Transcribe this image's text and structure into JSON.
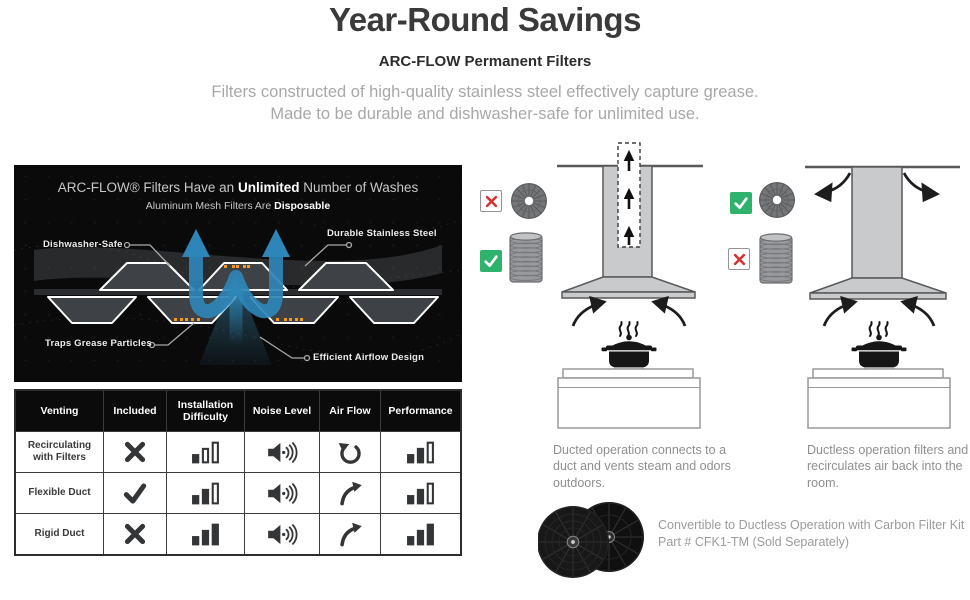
{
  "header": {
    "title": "Year-Round Savings",
    "subtitle": "ARC-FLOW Permanent Filters",
    "description": "Filters constructed of high-quality stainless steel effectively capture grease. Made to be durable and dishwasher-safe for unlimited use."
  },
  "filter_panel": {
    "headline_prefix": "ARC-FLOW® Filters Have an ",
    "headline_bold": "Unlimited",
    "headline_suffix": " Number of Washes",
    "subline_prefix": "Aluminum Mesh Filters Are ",
    "subline_bold": "Disposable",
    "labels": {
      "top_left": "Dishwasher-Safe",
      "top_right": "Durable Stainless Steel",
      "bottom_left": "Traps Grease Particles",
      "bottom_right": "Efficient Airflow Design"
    },
    "colors": {
      "arrow_blue": "#2e86b8",
      "grease_orange": "#f49a1c"
    }
  },
  "comparison_table": {
    "columns": [
      "Venting",
      "Included",
      "Installation Difficulty",
      "Noise Level",
      "Air Flow",
      "Performance"
    ],
    "rows": [
      {
        "venting": "Recirculating with Filters",
        "included": "no",
        "installation_difficulty": 1,
        "noise_level": 3,
        "air_flow": "recirculating",
        "performance": 2
      },
      {
        "venting": "Flexible Duct",
        "included": "yes",
        "installation_difficulty": 2,
        "noise_level": 3,
        "air_flow": "vented",
        "performance": 2
      },
      {
        "venting": "Rigid Duct",
        "included": "no",
        "installation_difficulty": 3,
        "noise_level": 3,
        "air_flow": "vented",
        "performance": 3
      }
    ]
  },
  "ducted": {
    "caption": "Ducted operation connects to a duct and vents steam and odors outdoors.",
    "round_filter": "no",
    "flex_duct": "yes"
  },
  "ductless": {
    "caption": "Ductless operation filters and recirculates air back into the room.",
    "round_filter": "yes",
    "flex_duct": "no"
  },
  "kit": {
    "note": "Convertible to Ductless Operation with Carbon Filter Kit Part # CFK1-TM (Sold Separately)"
  },
  "status_colors": {
    "check_green": "#2fb36c",
    "cross_red": "#d63333"
  },
  "icon_color": "#333537"
}
